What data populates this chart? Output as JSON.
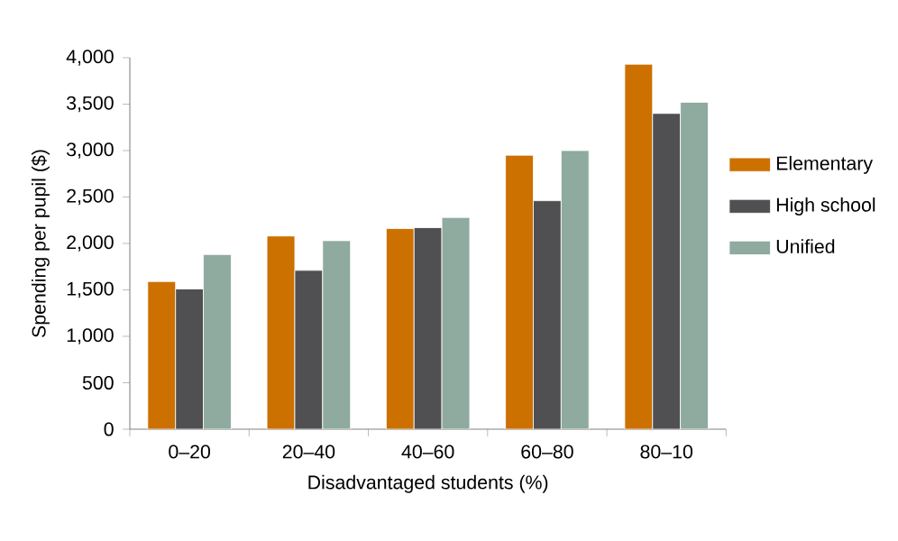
{
  "chart_data": {
    "type": "bar",
    "xlabel": "Disadvantaged students (%)",
    "ylabel": "Spending per pupil ($)",
    "categories": [
      "0–20",
      "20–40",
      "40–60",
      "60–80",
      "80–10"
    ],
    "series": [
      {
        "name": "Elementary",
        "color": "#cc7000",
        "values": [
          1590,
          2080,
          2160,
          2950,
          3930
        ]
      },
      {
        "name": "High school",
        "color": "#505052",
        "values": [
          1510,
          1710,
          2170,
          2460,
          3400
        ]
      },
      {
        "name": "Unified",
        "color": "#8faa9e",
        "values": [
          1880,
          2030,
          2280,
          3000,
          3520
        ]
      }
    ],
    "ylim": [
      0,
      4000
    ],
    "yticks": [
      {
        "value": 0,
        "label": "0"
      },
      {
        "value": 500,
        "label": "500"
      },
      {
        "value": 1000,
        "label": "1,000"
      },
      {
        "value": 1500,
        "label": "1,500"
      },
      {
        "value": 2000,
        "label": "2,000"
      },
      {
        "value": 2500,
        "label": "2,500"
      },
      {
        "value": 3000,
        "label": "3,000"
      },
      {
        "value": 3500,
        "label": "3,500"
      },
      {
        "value": 4000,
        "label": "4,000"
      }
    ],
    "legend": "right",
    "grid": false
  }
}
